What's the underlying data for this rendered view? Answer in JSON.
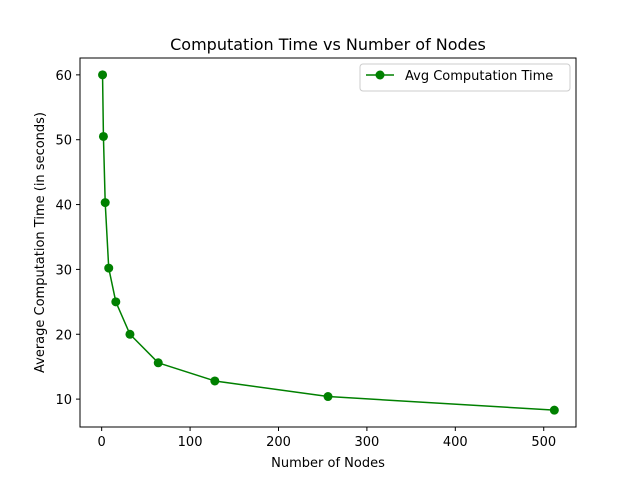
{
  "chart_data": {
    "type": "line",
    "title": "Computation Time vs Number of Nodes",
    "xlabel": "Number of Nodes",
    "ylabel": "Average Computation Time (in seconds)",
    "xlim": [
      -24.5,
      536.5
    ],
    "ylim": [
      5.7,
      62.6
    ],
    "xticks": [
      0,
      100,
      200,
      300,
      400,
      500
    ],
    "yticks": [
      10,
      20,
      30,
      40,
      50,
      60
    ],
    "grid": false,
    "legend_position": "top-right",
    "series": [
      {
        "name": "Avg Computation Time",
        "color": "#008000",
        "marker": "circle",
        "x": [
          1,
          2,
          4,
          8,
          16,
          32,
          64,
          128,
          256,
          512
        ],
        "y": [
          60.0,
          50.5,
          40.3,
          30.2,
          25.0,
          20.0,
          15.6,
          12.8,
          10.4,
          8.3
        ]
      }
    ]
  }
}
